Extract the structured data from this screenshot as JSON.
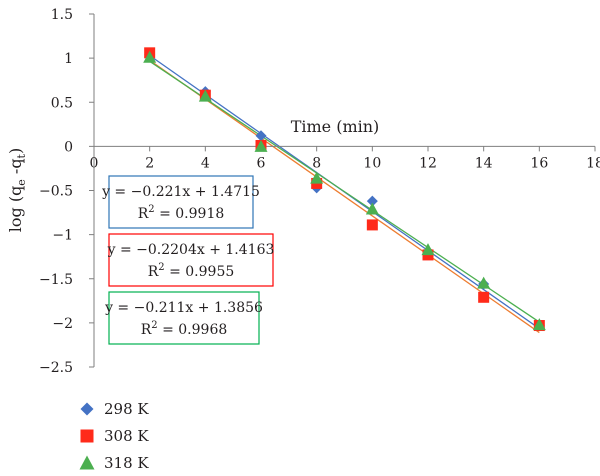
{
  "chart_data": {
    "type": "scatter",
    "xlabel": "Time (min)",
    "ylabel_parts": [
      "log (q",
      "e",
      " -q",
      "t",
      ")"
    ],
    "xlim": [
      0,
      18
    ],
    "ylim": [
      -2.5,
      1.5
    ],
    "x_ticks": [
      0,
      2,
      4,
      6,
      8,
      10,
      12,
      14,
      16,
      18
    ],
    "y_ticks": [
      1.5,
      1,
      0.5,
      0,
      -0.5,
      -1,
      -1.5,
      -2,
      -2.5
    ],
    "y_tick_labels": [
      "1.5",
      "1",
      "0.5",
      "0",
      "−0.5",
      "−1",
      "−1.5",
      "−2",
      "−2.5"
    ],
    "grid": false,
    "legend_position": "bottom-left",
    "series": [
      {
        "name": "298 K",
        "marker": "diamond",
        "color": "#4472c4",
        "x": [
          2,
          4,
          6,
          8,
          10,
          12,
          14,
          16
        ],
        "y": [
          1.04,
          0.62,
          0.12,
          -0.47,
          -0.62,
          -1.19,
          -1.56,
          -2.03
        ],
        "trendline": {
          "slope": -0.221,
          "intercept": 1.4715,
          "color": "#4472c4"
        },
        "equation": "y = −0.221x + 1.4715",
        "r2_prefix": "R",
        "r2_sup": "2",
        "r2_value": " = 0.9918",
        "box_color": "#2e75b6"
      },
      {
        "name": "308 K",
        "marker": "square",
        "color": "#ff2a1a",
        "x": [
          2,
          4,
          6,
          8,
          10,
          12,
          14,
          16
        ],
        "y": [
          1.06,
          0.58,
          0.01,
          -0.42,
          -0.89,
          -1.23,
          -1.71,
          -2.03
        ],
        "trendline": {
          "slope": -0.2204,
          "intercept": 1.4163,
          "color": "#ed7d31"
        },
        "equation": "y = −0.2204x + 1.4163",
        "r2_prefix": "R",
        "r2_sup": "2",
        "r2_value": " = 0.9955",
        "box_color": "#ff0000"
      },
      {
        "name": "318 K",
        "marker": "triangle",
        "color": "#4caf50",
        "x": [
          2,
          4,
          6,
          8,
          10,
          12,
          14,
          16
        ],
        "y": [
          1.01,
          0.57,
          0.0,
          -0.36,
          -0.71,
          -1.17,
          -1.55,
          -2.02
        ],
        "trendline": {
          "slope": -0.211,
          "intercept": 1.3856,
          "color": "#4caf50"
        },
        "equation": "y = −0.211x + 1.3856",
        "r2_prefix": "R",
        "r2_sup": "2",
        "r2_value": " = 0.9968",
        "box_color": "#00b050"
      }
    ]
  }
}
